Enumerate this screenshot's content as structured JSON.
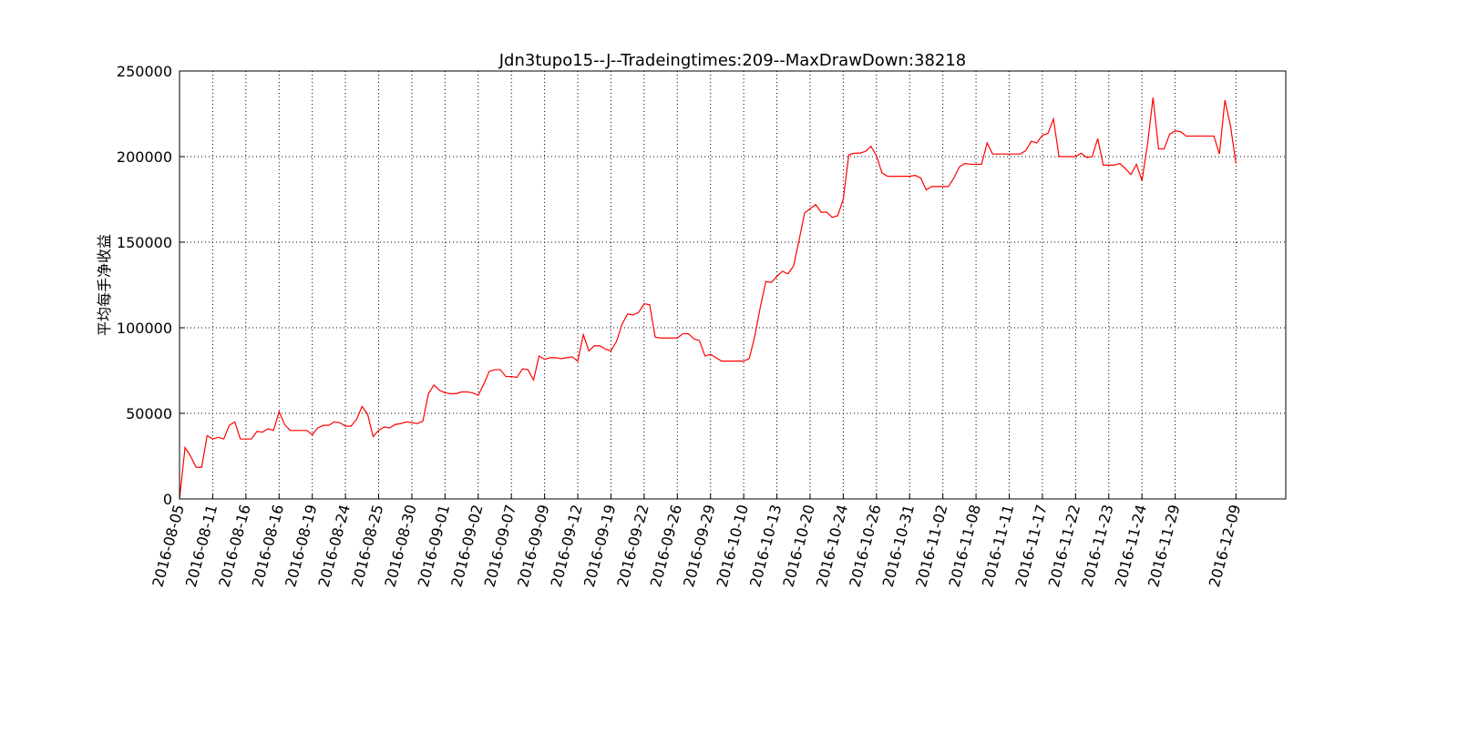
{
  "chart_data": {
    "type": "line",
    "title": "Jdn3tupo15--J--Tradeingtimes:209--MaxDrawDown:38218",
    "y_label": "平均每手净收益",
    "color": "#ff0000",
    "grid": true,
    "xlim": [
      0,
      200
    ],
    "ylim": [
      0,
      250000
    ],
    "yticks": [
      0,
      50000,
      100000,
      150000,
      200000,
      250000
    ],
    "xticks": [
      {
        "value": 0,
        "label": "2016-08-05"
      },
      {
        "value": 6,
        "label": "2016-08-11"
      },
      {
        "value": 12,
        "label": "2016-08-16"
      },
      {
        "value": 18,
        "label": "2016-08-16"
      },
      {
        "value": 24,
        "label": "2016-08-19"
      },
      {
        "value": 30,
        "label": "2016-08-24"
      },
      {
        "value": 36,
        "label": "2016-08-25"
      },
      {
        "value": 42,
        "label": "2016-08-30"
      },
      {
        "value": 48,
        "label": "2016-09-01"
      },
      {
        "value": 54,
        "label": "2016-09-02"
      },
      {
        "value": 60,
        "label": "2016-09-07"
      },
      {
        "value": 66,
        "label": "2016-09-09"
      },
      {
        "value": 72,
        "label": "2016-09-12"
      },
      {
        "value": 78,
        "label": "2016-09-19"
      },
      {
        "value": 84,
        "label": "2016-09-22"
      },
      {
        "value": 90,
        "label": "2016-09-26"
      },
      {
        "value": 96,
        "label": "2016-09-29"
      },
      {
        "value": 102,
        "label": "2016-10-10"
      },
      {
        "value": 108,
        "label": "2016-10-13"
      },
      {
        "value": 114,
        "label": "2016-10-20"
      },
      {
        "value": 120,
        "label": "2016-10-24"
      },
      {
        "value": 126,
        "label": "2016-10-26"
      },
      {
        "value": 132,
        "label": "2016-10-31"
      },
      {
        "value": 138,
        "label": "2016-11-02"
      },
      {
        "value": 144,
        "label": "2016-11-08"
      },
      {
        "value": 150,
        "label": "2016-11-11"
      },
      {
        "value": 156,
        "label": "2016-11-17"
      },
      {
        "value": 162,
        "label": "2016-11-22"
      },
      {
        "value": 168,
        "label": "2016-11-23"
      },
      {
        "value": 174,
        "label": "2016-11-24"
      },
      {
        "value": 180,
        "label": "2016-11-29"
      },
      {
        "value": 191,
        "label": "2016-12-09"
      }
    ],
    "values": [
      0,
      30000,
      25000,
      18500,
      18500,
      37000,
      35000,
      36000,
      35000,
      43000,
      45000,
      35000,
      35000,
      35000,
      39500,
      39000,
      41000,
      40000,
      51000,
      43500,
      40000,
      40000,
      40000,
      40000,
      37500,
      41500,
      43000,
      43000,
      45000,
      44500,
      42500,
      42500,
      46500,
      54000,
      49500,
      36500,
      40000,
      42000,
      41500,
      43500,
      44000,
      45000,
      44500,
      44000,
      45500,
      61500,
      66500,
      63500,
      62000,
      61500,
      61500,
      62500,
      62500,
      62000,
      60500,
      67000,
      74500,
      75500,
      75500,
      71500,
      71500,
      71000,
      76000,
      75500,
      69500,
      83500,
      81500,
      82500,
      82500,
      82000,
      82500,
      83000,
      80500,
      96000,
      86500,
      89500,
      89500,
      87500,
      86500,
      92000,
      102000,
      108000,
      107500,
      109000,
      114000,
      113500,
      94500,
      94000,
      94000,
      94000,
      94000,
      96500,
      96500,
      93500,
      92500,
      83500,
      84500,
      82500,
      80500,
      80500,
      80500,
      80500,
      80500,
      82000,
      95000,
      112000,
      127000,
      126500,
      130000,
      133000,
      131500,
      136000,
      151000,
      167000,
      169500,
      172000,
      167500,
      167500,
      164500,
      165500,
      175000,
      201000,
      202000,
      202000,
      203000,
      206000,
      200500,
      190500,
      188500,
      188500,
      188500,
      188500,
      188500,
      189000,
      187500,
      180500,
      182500,
      182500,
      182500,
      182500,
      187500,
      194000,
      196000,
      195500,
      195500,
      195500,
      208000,
      201500,
      201500,
      201500,
      201500,
      201500,
      201500,
      203500,
      209000,
      208000,
      212500,
      213500,
      222000,
      200000,
      200000,
      200000,
      200000,
      202000,
      199500,
      200000,
      210500,
      195000,
      195000,
      195000,
      196000,
      193000,
      189500,
      195500,
      186000,
      207000,
      234500,
      204500,
      204500,
      213000,
      215000,
      214500,
      212000,
      212000,
      212000,
      212000,
      212000,
      212000,
      201500,
      233000,
      218000,
      196000
    ]
  }
}
